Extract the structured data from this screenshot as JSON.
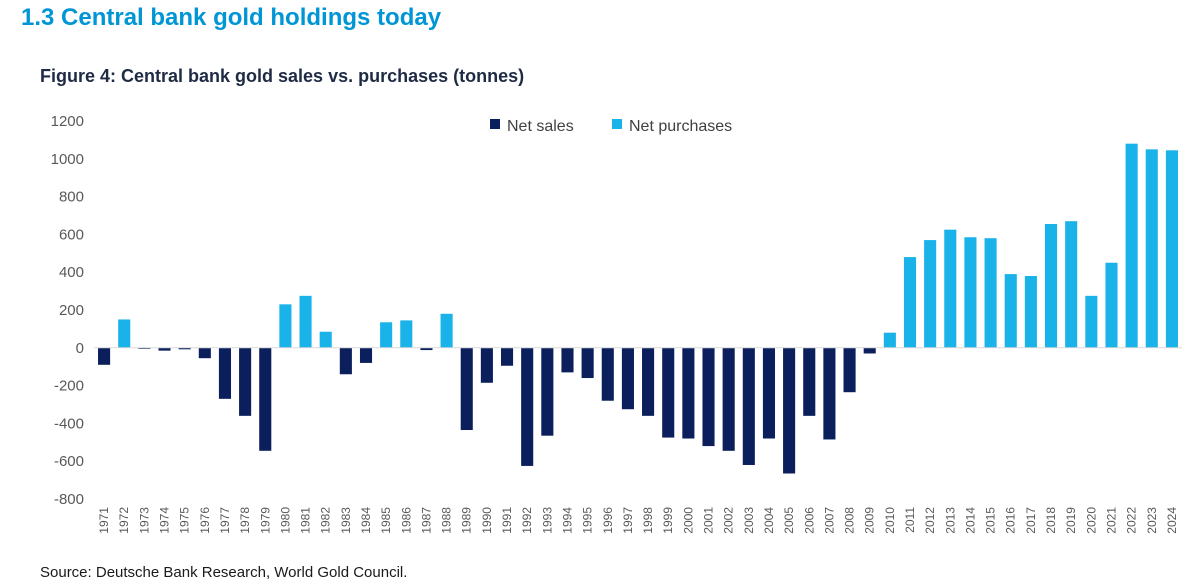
{
  "section_title": "1.3 Central bank gold holdings today",
  "source": "Source: Deutsche Bank Research, World Gold Council.",
  "colors": {
    "net_sales": "#0b1f5c",
    "net_purchases": "#19b3ea",
    "section_title": "#0096d6"
  },
  "chart_data": {
    "type": "bar",
    "title": "Figure 4: Central bank gold sales vs. purchases (tonnes)",
    "xlabel": "",
    "ylabel": "",
    "ylim": [
      -800,
      1200
    ],
    "yticks": [
      1200,
      1000,
      800,
      600,
      400,
      200,
      0,
      -200,
      -400,
      -600,
      -800
    ],
    "legend": {
      "position": "top",
      "entries": [
        "Net sales",
        "Net purchases"
      ]
    },
    "categories": [
      "1971",
      "1972",
      "1973",
      "1974",
      "1975",
      "1976",
      "1977",
      "1978",
      "1979",
      "1980",
      "1981",
      "1982",
      "1983",
      "1984",
      "1985",
      "1986",
      "1987",
      "1988",
      "1989",
      "1990",
      "1991",
      "1992",
      "1993",
      "1994",
      "1995",
      "1996",
      "1997",
      "1998",
      "1999",
      "2000",
      "2001",
      "2002",
      "2003",
      "2004",
      "2005",
      "2006",
      "2007",
      "2008",
      "2009",
      "2010",
      "2011",
      "2012",
      "2013",
      "2014",
      "2015",
      "2016",
      "2017",
      "2018",
      "2019",
      "2020",
      "2021",
      "2022",
      "2023",
      "2024"
    ],
    "values": [
      -90,
      150,
      -5,
      -15,
      -8,
      -55,
      -270,
      -360,
      -545,
      230,
      275,
      85,
      -140,
      -80,
      135,
      145,
      -12,
      180,
      -435,
      -185,
      -95,
      -625,
      -465,
      -130,
      -160,
      -280,
      -325,
      -360,
      -475,
      -480,
      -520,
      -545,
      -620,
      -480,
      -665,
      -360,
      -485,
      -235,
      -30,
      80,
      480,
      570,
      625,
      585,
      580,
      390,
      380,
      655,
      670,
      275,
      450,
      1080,
      1050,
      1045
    ],
    "series_rule": "negative values = Net sales, positive values = Net purchases"
  }
}
